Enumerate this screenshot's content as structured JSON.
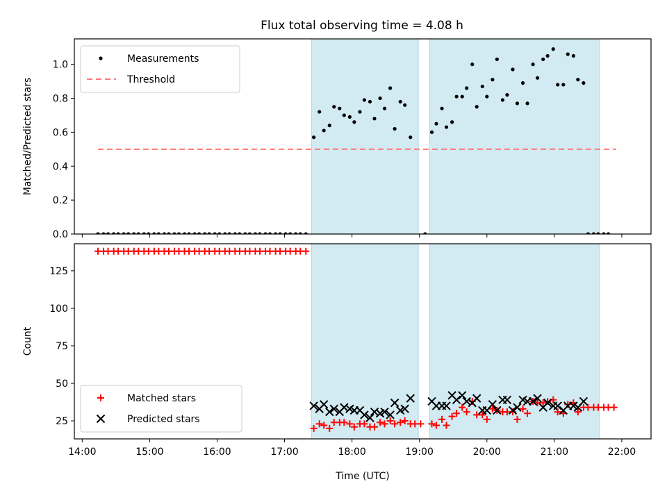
{
  "title": "Flux total observing time = 4.08 h",
  "colors": {
    "span": "#add8e6",
    "threshold": "#ff7777",
    "matched": "#ff0000",
    "predicted": "#000000",
    "measurement": "#000000"
  },
  "chart_data": [
    {
      "type": "scatter",
      "panel": "top",
      "title": "Flux total observing time = 4.08 h",
      "xlabel": "",
      "ylabel": "Matched/Predicted stars",
      "xlim": [
        "13:53",
        "22:26"
      ],
      "ylim": [
        0,
        1.15
      ],
      "xticks": [
        "14:00",
        "15:00",
        "16:00",
        "17:00",
        "18:00",
        "19:00",
        "20:00",
        "21:00",
        "22:00"
      ],
      "yticks": [
        "0.0",
        "0.2",
        "0.4",
        "0.6",
        "0.8",
        "1.0"
      ],
      "shaded_intervals": [
        [
          "17:24",
          "18:59"
        ],
        [
          "19:09",
          "21:40"
        ]
      ],
      "legend_position": "upper left",
      "series": [
        {
          "name": "Measurements",
          "marker": "dot",
          "points": [
            [
              "14:14",
              0
            ],
            [
              "14:19",
              0
            ],
            [
              "14:23",
              0
            ],
            [
              "14:28",
              0
            ],
            [
              "14:32",
              0
            ],
            [
              "14:37",
              0
            ],
            [
              "14:41",
              0
            ],
            [
              "14:46",
              0
            ],
            [
              "14:50",
              0
            ],
            [
              "14:55",
              0
            ],
            [
              "14:59",
              0
            ],
            [
              "15:04",
              0
            ],
            [
              "15:08",
              0
            ],
            [
              "15:13",
              0
            ],
            [
              "15:17",
              0
            ],
            [
              "15:22",
              0
            ],
            [
              "15:26",
              0
            ],
            [
              "15:31",
              0
            ],
            [
              "15:35",
              0
            ],
            [
              "15:40",
              0
            ],
            [
              "15:44",
              0
            ],
            [
              "15:49",
              0
            ],
            [
              "15:53",
              0
            ],
            [
              "15:58",
              0
            ],
            [
              "16:02",
              0
            ],
            [
              "16:07",
              0
            ],
            [
              "16:11",
              0
            ],
            [
              "16:16",
              0
            ],
            [
              "16:20",
              0
            ],
            [
              "16:25",
              0
            ],
            [
              "16:29",
              0
            ],
            [
              "16:34",
              0
            ],
            [
              "16:38",
              0
            ],
            [
              "16:43",
              0
            ],
            [
              "16:47",
              0
            ],
            [
              "16:52",
              0
            ],
            [
              "16:56",
              0
            ],
            [
              "17:01",
              0
            ],
            [
              "17:05",
              0
            ],
            [
              "17:10",
              0
            ],
            [
              "17:14",
              0
            ],
            [
              "17:19",
              0
            ],
            [
              "17:26",
              0.57
            ],
            [
              "17:31",
              0.72
            ],
            [
              "17:35",
              0.61
            ],
            [
              "17:40",
              0.64
            ],
            [
              "17:44",
              0.75
            ],
            [
              "17:49",
              0.74
            ],
            [
              "17:53",
              0.7
            ],
            [
              "17:58",
              0.69
            ],
            [
              "18:02",
              0.66
            ],
            [
              "18:07",
              0.72
            ],
            [
              "18:11",
              0.79
            ],
            [
              "18:16",
              0.78
            ],
            [
              "18:20",
              0.68
            ],
            [
              "18:25",
              0.8
            ],
            [
              "18:29",
              0.74
            ],
            [
              "18:34",
              0.86
            ],
            [
              "18:38",
              0.62
            ],
            [
              "18:43",
              0.78
            ],
            [
              "18:47",
              0.76
            ],
            [
              "18:52",
              0.57
            ],
            [
              "19:05",
              0
            ],
            [
              "19:11",
              0.6
            ],
            [
              "19:15",
              0.65
            ],
            [
              "19:20",
              0.74
            ],
            [
              "19:24",
              0.63
            ],
            [
              "19:29",
              0.66
            ],
            [
              "19:33",
              0.81
            ],
            [
              "19:38",
              0.81
            ],
            [
              "19:42",
              0.86
            ],
            [
              "19:47",
              1.0
            ],
            [
              "19:51",
              0.75
            ],
            [
              "19:56",
              0.87
            ],
            [
              "20:00",
              0.81
            ],
            [
              "20:05",
              0.91
            ],
            [
              "20:09",
              1.03
            ],
            [
              "20:14",
              0.79
            ],
            [
              "20:18",
              0.82
            ],
            [
              "20:23",
              0.97
            ],
            [
              "20:27",
              0.77
            ],
            [
              "20:32",
              0.89
            ],
            [
              "20:36",
              0.77
            ],
            [
              "20:41",
              1.0
            ],
            [
              "20:45",
              0.92
            ],
            [
              "20:50",
              1.03
            ],
            [
              "20:54",
              1.05
            ],
            [
              "20:59",
              1.09
            ],
            [
              "21:03",
              0.88
            ],
            [
              "21:08",
              0.88
            ],
            [
              "21:12",
              1.06
            ],
            [
              "21:17",
              1.05
            ],
            [
              "21:21",
              0.91
            ],
            [
              "21:26",
              0.89
            ],
            [
              "21:30",
              0
            ],
            [
              "21:35",
              0
            ],
            [
              "21:39",
              0
            ],
            [
              "21:44",
              0
            ],
            [
              "21:48",
              0
            ]
          ]
        },
        {
          "name": "Threshold",
          "style": "dashed",
          "points": [
            [
              "14:14",
              0.5
            ],
            [
              "21:55",
              0.5
            ]
          ]
        }
      ]
    },
    {
      "type": "scatter",
      "panel": "bottom",
      "xlabel": "Time (UTC)",
      "ylabel": "Count",
      "xlim": [
        "13:53",
        "22:26"
      ],
      "ylim": [
        13,
        143
      ],
      "xticks": [
        "14:00",
        "15:00",
        "16:00",
        "17:00",
        "18:00",
        "19:00",
        "20:00",
        "21:00",
        "22:00"
      ],
      "yticks": [
        "25",
        "50",
        "75",
        "100",
        "125"
      ],
      "shaded_intervals": [
        [
          "17:24",
          "18:59"
        ],
        [
          "19:09",
          "21:40"
        ]
      ],
      "legend_position": "lower left",
      "series": [
        {
          "name": "Matched stars",
          "marker": "plus",
          "points": [
            [
              "14:14",
              138
            ],
            [
              "14:19",
              138
            ],
            [
              "14:23",
              138
            ],
            [
              "14:28",
              138
            ],
            [
              "14:32",
              138
            ],
            [
              "14:37",
              138
            ],
            [
              "14:41",
              138
            ],
            [
              "14:46",
              138
            ],
            [
              "14:50",
              138
            ],
            [
              "14:55",
              138
            ],
            [
              "14:59",
              138
            ],
            [
              "15:04",
              138
            ],
            [
              "15:08",
              138
            ],
            [
              "15:13",
              138
            ],
            [
              "15:17",
              138
            ],
            [
              "15:22",
              138
            ],
            [
              "15:26",
              138
            ],
            [
              "15:31",
              138
            ],
            [
              "15:35",
              138
            ],
            [
              "15:40",
              138
            ],
            [
              "15:44",
              138
            ],
            [
              "15:49",
              138
            ],
            [
              "15:53",
              138
            ],
            [
              "15:58",
              138
            ],
            [
              "16:02",
              138
            ],
            [
              "16:07",
              138
            ],
            [
              "16:11",
              138
            ],
            [
              "16:16",
              138
            ],
            [
              "16:20",
              138
            ],
            [
              "16:25",
              138
            ],
            [
              "16:29",
              138
            ],
            [
              "16:34",
              138
            ],
            [
              "16:38",
              138
            ],
            [
              "16:43",
              138
            ],
            [
              "16:47",
              138
            ],
            [
              "16:52",
              138
            ],
            [
              "16:56",
              138
            ],
            [
              "17:01",
              138
            ],
            [
              "17:05",
              138
            ],
            [
              "17:10",
              138
            ],
            [
              "17:14",
              138
            ],
            [
              "17:19",
              138
            ],
            [
              "17:26",
              20
            ],
            [
              "17:31",
              23
            ],
            [
              "17:35",
              22
            ],
            [
              "17:40",
              20
            ],
            [
              "17:44",
              24
            ],
            [
              "17:49",
              24
            ],
            [
              "17:53",
              24
            ],
            [
              "17:58",
              23
            ],
            [
              "18:02",
              21
            ],
            [
              "18:07",
              23
            ],
            [
              "18:11",
              23
            ],
            [
              "18:16",
              21
            ],
            [
              "18:20",
              21
            ],
            [
              "18:25",
              24
            ],
            [
              "18:29",
              23
            ],
            [
              "18:34",
              25
            ],
            [
              "18:38",
              23
            ],
            [
              "18:43",
              24
            ],
            [
              "18:47",
              25
            ],
            [
              "18:52",
              23
            ],
            [
              "18:56",
              23
            ],
            [
              "19:01",
              23
            ],
            [
              "19:11",
              23
            ],
            [
              "19:15",
              22
            ],
            [
              "19:20",
              26
            ],
            [
              "19:24",
              22
            ],
            [
              "19:29",
              28
            ],
            [
              "19:33",
              30
            ],
            [
              "19:38",
              34
            ],
            [
              "19:42",
              31
            ],
            [
              "19:47",
              38
            ],
            [
              "19:51",
              29
            ],
            [
              "19:56",
              29
            ],
            [
              "20:00",
              26
            ],
            [
              "20:05",
              33
            ],
            [
              "20:09",
              32
            ],
            [
              "20:14",
              31
            ],
            [
              "20:18",
              31
            ],
            [
              "20:23",
              31
            ],
            [
              "20:27",
              26
            ],
            [
              "20:32",
              33
            ],
            [
              "20:36",
              30
            ],
            [
              "20:41",
              38
            ],
            [
              "20:45",
              37
            ],
            [
              "20:50",
              37
            ],
            [
              "20:54",
              38
            ],
            [
              "20:59",
              39
            ],
            [
              "21:03",
              31
            ],
            [
              "21:08",
              30
            ],
            [
              "21:12",
              36
            ],
            [
              "21:17",
              37
            ],
            [
              "21:21",
              31
            ],
            [
              "21:26",
              34
            ],
            [
              "21:30",
              34
            ],
            [
              "21:35",
              34
            ],
            [
              "21:39",
              34
            ],
            [
              "21:44",
              34
            ],
            [
              "21:48",
              34
            ],
            [
              "21:53",
              34
            ]
          ]
        },
        {
          "name": "Predicted stars",
          "marker": "x",
          "points": [
            [
              "17:26",
              35
            ],
            [
              "17:31",
              33
            ],
            [
              "17:35",
              36
            ],
            [
              "17:40",
              31
            ],
            [
              "17:44",
              33
            ],
            [
              "17:49",
              31
            ],
            [
              "17:53",
              34
            ],
            [
              "17:58",
              33
            ],
            [
              "18:02",
              32
            ],
            [
              "18:07",
              32
            ],
            [
              "18:11",
              29
            ],
            [
              "18:16",
              27
            ],
            [
              "18:20",
              31
            ],
            [
              "18:25",
              30
            ],
            [
              "18:29",
              31
            ],
            [
              "18:34",
              29
            ],
            [
              "18:38",
              37
            ],
            [
              "18:43",
              32
            ],
            [
              "18:47",
              33
            ],
            [
              "18:52",
              40
            ],
            [
              "19:11",
              38
            ],
            [
              "19:15",
              35
            ],
            [
              "19:20",
              35
            ],
            [
              "19:24",
              35
            ],
            [
              "19:29",
              42
            ],
            [
              "19:33",
              39
            ],
            [
              "19:38",
              42
            ],
            [
              "19:42",
              38
            ],
            [
              "19:47",
              37
            ],
            [
              "19:51",
              40
            ],
            [
              "19:56",
              32
            ],
            [
              "20:00",
              32
            ],
            [
              "20:05",
              36
            ],
            [
              "20:09",
              32
            ],
            [
              "20:14",
              39
            ],
            [
              "20:18",
              39
            ],
            [
              "20:23",
              32
            ],
            [
              "20:27",
              34
            ],
            [
              "20:32",
              39
            ],
            [
              "20:36",
              38
            ],
            [
              "20:41",
              38
            ],
            [
              "20:45",
              40
            ],
            [
              "20:50",
              34
            ],
            [
              "20:54",
              37
            ],
            [
              "20:59",
              35
            ],
            [
              "21:03",
              35
            ],
            [
              "21:08",
              32
            ],
            [
              "21:12",
              35
            ],
            [
              "21:17",
              35
            ],
            [
              "21:21",
              34
            ],
            [
              "21:26",
              38
            ]
          ]
        }
      ]
    }
  ]
}
